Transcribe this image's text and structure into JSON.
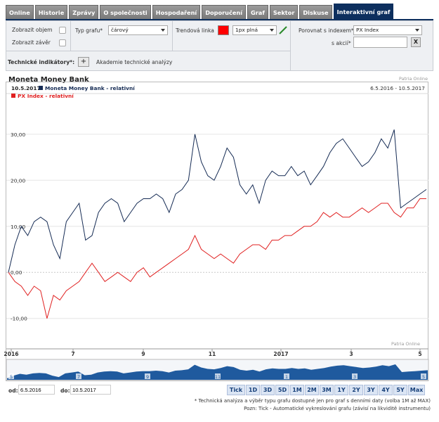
{
  "tabs": [
    "Online",
    "Historie",
    "Zprávy",
    "O společnosti",
    "Hospodaření",
    "Doporučení",
    "Graf",
    "Sektor",
    "Diskuse",
    "Interaktivní graf"
  ],
  "controls": {
    "show_volume": "Zobrazit objem",
    "show_close": "Zobrazit závěr",
    "chart_type_label": "Typ grafu*",
    "chart_type_value": "čárový",
    "trend_label": "Trendová linka",
    "trend_color": "#ff0000",
    "trend_style": "1px plná",
    "compare_label": "Porovnat s indexem*",
    "compare_value": "PX Index",
    "stock_label": "s akcií*",
    "stock_value": "",
    "clear_btn": "X",
    "tech_label": "Technické indikátory*:",
    "add_btn": "+",
    "academy": "Akademie technické analýzy"
  },
  "chart_title": "Moneta Money Bank",
  "source": "Patria Online",
  "chart_data": {
    "type": "line",
    "legend_date": "10.5.2017",
    "range_text": "6.5.2016 - 10.5.2017",
    "x_ticks": [
      "2016",
      "7",
      "9",
      "11",
      "2017",
      "3",
      "5"
    ],
    "y_ticks": [
      "30,00",
      "20,00",
      "10,00",
      "0,00",
      "-10,00"
    ],
    "ylim": [
      -16,
      37
    ],
    "colors": {
      "s1": "#152b54",
      "s2": "#e02020"
    },
    "series": [
      {
        "name": "Moneta Money Bank - relativní",
        "values": [
          0,
          6,
          10,
          8,
          11,
          12,
          11,
          6,
          3,
          11,
          13,
          15,
          7,
          8,
          13,
          15,
          16,
          15,
          11,
          13,
          15,
          16,
          16,
          17,
          16,
          13,
          17,
          18,
          20,
          30,
          24,
          21,
          20,
          23,
          27,
          25,
          19,
          17,
          19,
          15,
          20,
          22,
          21,
          21,
          23,
          21,
          22,
          19,
          21,
          23,
          26,
          28,
          29,
          27,
          25,
          23,
          24,
          26,
          29,
          27,
          31,
          14,
          15,
          16,
          17,
          18
        ]
      },
      {
        "name": "PX Index - relativní",
        "values": [
          0,
          -2,
          -3,
          -5,
          -3,
          -4,
          -10,
          -5,
          -6,
          -4,
          -3,
          -2,
          0,
          2,
          0,
          -2,
          -1,
          0,
          -1,
          -2,
          0,
          1,
          -1,
          0,
          1,
          2,
          3,
          4,
          5,
          8,
          5,
          4,
          3,
          4,
          3,
          2,
          4,
          5,
          6,
          6,
          5,
          7,
          7,
          8,
          8,
          9,
          10,
          10,
          11,
          13,
          12,
          13,
          12,
          12,
          13,
          14,
          13,
          14,
          15,
          15,
          13,
          12,
          14,
          14,
          16,
          16
        ]
      }
    ]
  },
  "navigator_ticks": [
    "5",
    "7",
    "9",
    "11",
    "1",
    "3",
    "5"
  ],
  "date_from_label": "od:",
  "date_from": "6.5.2016",
  "date_to_label": "do:",
  "date_to": "10.5.2017",
  "periods": [
    "Tick",
    "1D",
    "3D",
    "5D",
    "1M",
    "2M",
    "3M",
    "1Y",
    "2Y",
    "3Y",
    "4Y",
    "5Y",
    "Max"
  ],
  "notes": [
    "* Technická analýza a výběr typu grafu dostupné jen pro graf s denními daty (volba 1M až MAX)",
    "Pozn: Tick - Automatické vykreslování grafu (závisí na likviditě instrumentu)"
  ]
}
